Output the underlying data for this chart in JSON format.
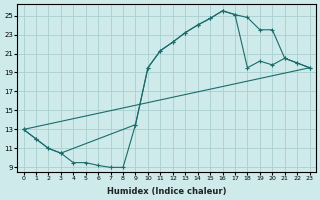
{
  "xlabel": "Humidex (Indice chaleur)",
  "bg_color": "#ceeaea",
  "grid_color": "#aacfcf",
  "line_color": "#1a6b6b",
  "line1_x": [
    0,
    1,
    2,
    3,
    4,
    5,
    6,
    7,
    8,
    9,
    10,
    11,
    12,
    13,
    14,
    15,
    16,
    17,
    18,
    19,
    20,
    21,
    22,
    23
  ],
  "line1_y": [
    13,
    12,
    11,
    10.5,
    9.5,
    9.5,
    9.2,
    9.0,
    9.0,
    13.5,
    19.5,
    21.3,
    22.2,
    23.2,
    24.0,
    24.7,
    25.5,
    25.1,
    19.5,
    20.2,
    19.8,
    20.5,
    20.0,
    19.5
  ],
  "line2_x": [
    0,
    1,
    2,
    3,
    9,
    10,
    11,
    12,
    13,
    14,
    15,
    16,
    17,
    18,
    19,
    20,
    21,
    22,
    23
  ],
  "line2_y": [
    13,
    12,
    11,
    10.5,
    13.5,
    19.5,
    21.3,
    22.2,
    23.2,
    24.0,
    24.7,
    25.5,
    25.1,
    24.8,
    23.5,
    23.5,
    20.5,
    20.0,
    19.5
  ],
  "line3_x": [
    0,
    23
  ],
  "line3_y": [
    13,
    19.5
  ],
  "xlim": [
    -0.5,
    23.5
  ],
  "ylim": [
    8.5,
    26.2
  ],
  "yticks": [
    9,
    11,
    13,
    15,
    17,
    19,
    21,
    23,
    25
  ],
  "xticks": [
    0,
    1,
    2,
    3,
    4,
    5,
    6,
    7,
    8,
    9,
    10,
    11,
    12,
    13,
    14,
    15,
    16,
    17,
    18,
    19,
    20,
    21,
    22,
    23
  ]
}
